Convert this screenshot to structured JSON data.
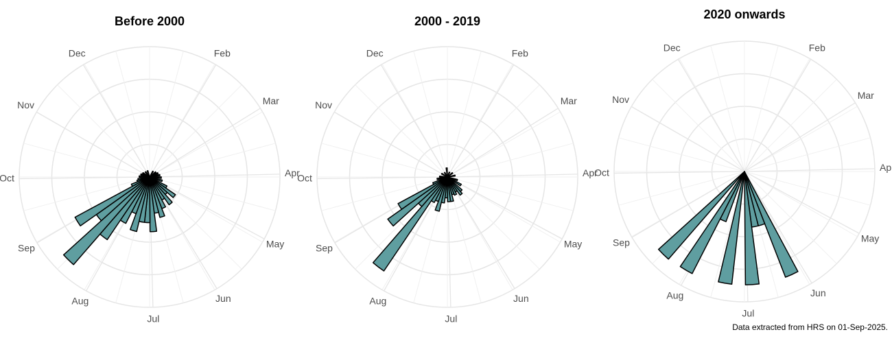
{
  "caption": "Data extracted from HRS on 01-Sep-2025.",
  "chart_data": [
    {
      "type": "polar-bar",
      "title": "Before 2000",
      "color": "#5f9ea0",
      "bar_width": 7,
      "xlim": [
        0,
        365
      ],
      "xticks": [
        {
          "value": 31,
          "label": "Feb"
        },
        {
          "value": 59,
          "label": "Mar"
        },
        {
          "value": 90,
          "label": "Apr"
        },
        {
          "value": 120,
          "label": "May"
        },
        {
          "value": 151,
          "label": "Jun"
        },
        {
          "value": 181,
          "label": "Jul"
        },
        {
          "value": 212,
          "label": "Aug"
        },
        {
          "value": 243,
          "label": "Sep"
        },
        {
          "value": 273,
          "label": "Oct"
        },
        {
          "value": 304,
          "label": "Nov"
        },
        {
          "value": 334,
          "label": "Dec"
        }
      ],
      "rlim": [
        0,
        10
      ],
      "x": [
        31.5,
        52.5,
        66.5,
        80.5,
        94.5,
        108.5,
        122.5,
        129.5,
        136.5,
        143.5,
        150.5,
        157.5,
        164.5,
        171.5,
        178.5,
        185.5,
        192.5,
        199.5,
        206.5,
        213.5,
        220.5,
        227.5,
        234.5,
        241.5,
        248.5,
        255.5,
        262.5,
        276.5,
        290.5,
        304.5,
        325.5,
        346.5
      ],
      "values": [
        0.5,
        0.6,
        0.7,
        0.8,
        0.9,
        1.0,
        1.5,
        2.4,
        1.8,
        2.6,
        2.0,
        2.6,
        3.2,
        2.8,
        4.2,
        3.5,
        3.5,
        4.3,
        3.0,
        4.0,
        5.8,
        8.9,
        5.0,
        6.5,
        1.5,
        1.0,
        0.9,
        0.8,
        0.7,
        0.6,
        0.5,
        0.5
      ]
    },
    {
      "type": "polar-bar",
      "title": "2000 - 2019",
      "color": "#5f9ea0",
      "bar_width": 7,
      "xlim": [
        0,
        365
      ],
      "xticks": [
        {
          "value": 31,
          "label": "Feb"
        },
        {
          "value": 59,
          "label": "Mar"
        },
        {
          "value": 90,
          "label": "Apr"
        },
        {
          "value": 120,
          "label": "May"
        },
        {
          "value": 151,
          "label": "Jun"
        },
        {
          "value": 181,
          "label": "Jul"
        },
        {
          "value": 212,
          "label": "Aug"
        },
        {
          "value": 243,
          "label": "Sep"
        },
        {
          "value": 273,
          "label": "Oct"
        },
        {
          "value": 304,
          "label": "Nov"
        },
        {
          "value": 334,
          "label": "Dec"
        }
      ],
      "rlim": [
        0,
        10
      ],
      "x": [
        24.5,
        52.5,
        80.5,
        108.5,
        122.5,
        136.5,
        143.5,
        150.5,
        157.5,
        164.5,
        171.5,
        178.5,
        185.5,
        192.5,
        199.5,
        206.5,
        213.5,
        220.5,
        227.5,
        234.5,
        241.5,
        248.5,
        262.5,
        276.5,
        304.5,
        332.5,
        360.5
      ],
      "values": [
        0.4,
        0.5,
        0.6,
        0.8,
        1.2,
        1.5,
        1.7,
        1.3,
        1.5,
        1.4,
        1.9,
        1.9,
        1.6,
        2.0,
        2.7,
        2.0,
        2.2,
        8.7,
        3.0,
        5.6,
        4.3,
        1.2,
        0.8,
        0.6,
        0.5,
        0.4,
        0.7
      ]
    },
    {
      "type": "polar-bar",
      "title": "2020 onwards",
      "color": "#5f9ea0",
      "bar_width": 7,
      "xlim": [
        0,
        365
      ],
      "xticks": [
        {
          "value": 31,
          "label": "Feb"
        },
        {
          "value": 59,
          "label": "Mar"
        },
        {
          "value": 90,
          "label": "Apr"
        },
        {
          "value": 120,
          "label": "May"
        },
        {
          "value": 151,
          "label": "Jun"
        },
        {
          "value": 181,
          "label": "Jul"
        },
        {
          "value": 212,
          "label": "Aug"
        },
        {
          "value": 243,
          "label": "Sep"
        },
        {
          "value": 273,
          "label": "Oct"
        },
        {
          "value": 304,
          "label": "Nov"
        },
        {
          "value": 334,
          "label": "Dec"
        }
      ],
      "rlim": [
        0,
        10
      ],
      "x": [
        157.5,
        164.5,
        171.5,
        178.5,
        192.5,
        206.5,
        213.5,
        227.5
      ],
      "values": [
        8.7,
        4.3,
        4.3,
        8.7,
        8.7,
        4.1,
        8.8,
        8.9
      ]
    }
  ]
}
